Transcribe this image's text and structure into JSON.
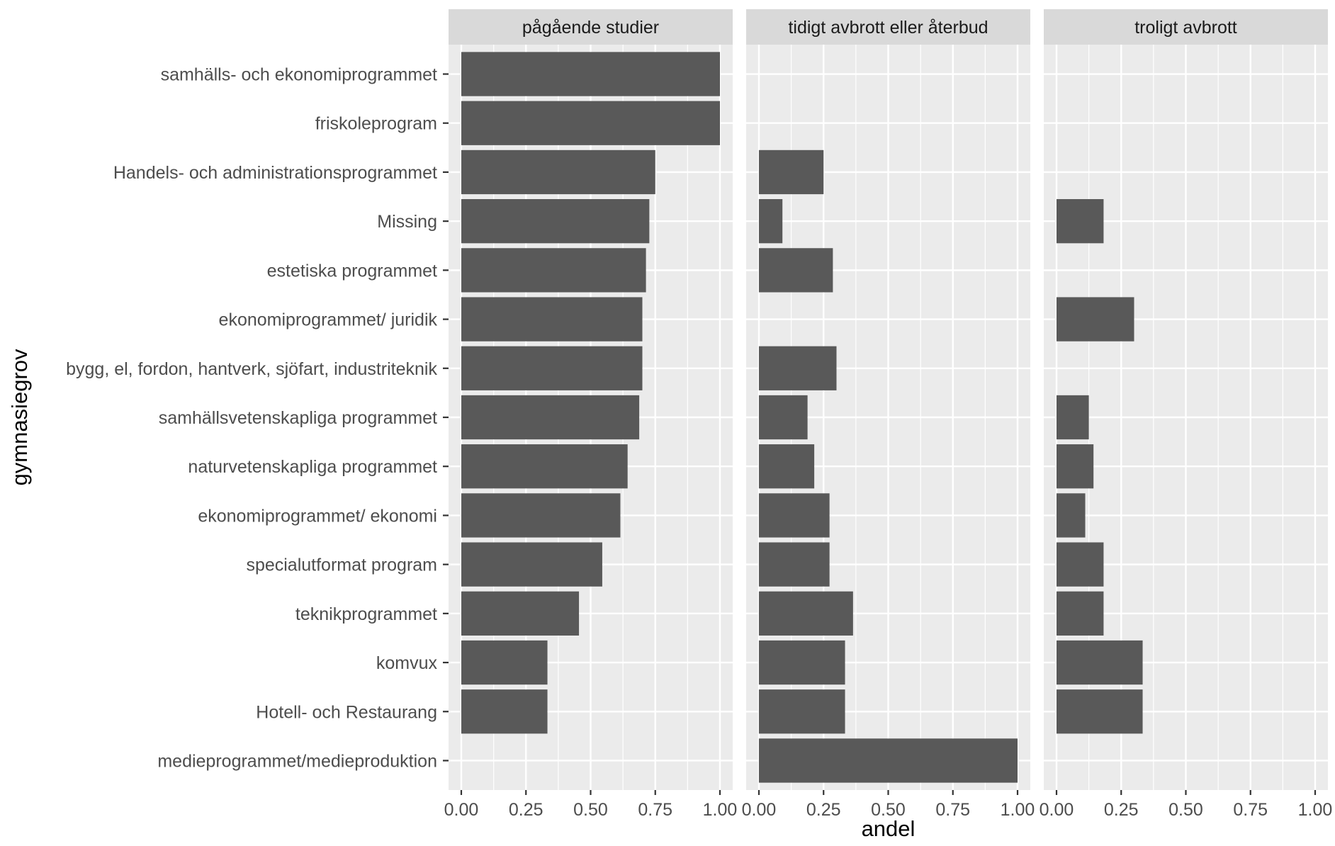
{
  "chart_data": {
    "type": "bar",
    "orientation": "horizontal",
    "faceted": true,
    "xlabel": "andel",
    "ylabel": "gymnasiegrov",
    "xlim": [
      0,
      1
    ],
    "x_ticks": [
      "0.00",
      "0.25",
      "0.50",
      "0.75",
      "1.00"
    ],
    "x_tick_values": [
      0,
      0.25,
      0.5,
      0.75,
      1
    ],
    "grid": true,
    "bar_color": "#595959",
    "panel_background": "#ebebeb",
    "strip_background": "#d9d9d9",
    "categories": [
      "samhälls- och ekonomiprogrammet",
      "friskoleprogram",
      "Handels- och administrationsprogrammet",
      "Missing",
      "estetiska programmet",
      "ekonomiprogrammet/ juridik",
      "bygg, el, fordon, hantverk, sjöfart, industriteknik",
      "samhällsvetenskapliga programmet",
      "naturvetenskapliga programmet",
      "ekonomiprogrammet/ ekonomi",
      "specialutformat program",
      "teknikprogrammet",
      "komvux",
      "Hotell- och Restaurang",
      "medieprogrammet/medieproduktion"
    ],
    "panels": [
      {
        "name": "pågående studier",
        "values": [
          1.0,
          1.0,
          0.75,
          0.727,
          0.714,
          0.7,
          0.7,
          0.688,
          0.643,
          0.615,
          0.545,
          0.455,
          0.333,
          0.333,
          0
        ]
      },
      {
        "name": "tidigt avbrott eller återbud",
        "values": [
          0,
          0,
          0.25,
          0.091,
          0.286,
          0,
          0.3,
          0.188,
          0.214,
          0.273,
          0.273,
          0.364,
          0.333,
          0.333,
          1.0
        ]
      },
      {
        "name": "troligt avbrott",
        "values": [
          0,
          0,
          0,
          0.182,
          0,
          0.3,
          0,
          0.125,
          0.143,
          0.111,
          0.182,
          0.182,
          0.333,
          0.333,
          0
        ]
      }
    ]
  }
}
